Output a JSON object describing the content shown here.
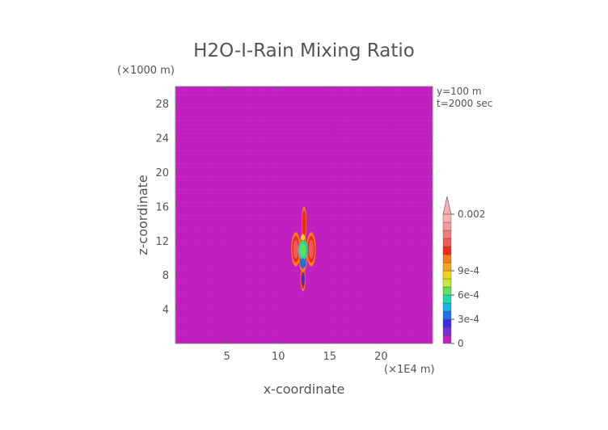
{
  "chart_data": {
    "type": "heatmap",
    "title": "H2O-I-Rain Mixing Ratio",
    "xlabel": "x-coordinate",
    "ylabel": "z-coordinate",
    "x_unit": "(×1E4 m)",
    "y_unit": "(×1000 m)",
    "annotations": [
      "y=100 m",
      "t=2000 sec"
    ],
    "x_ticks": [
      5,
      10,
      15,
      20
    ],
    "y_ticks": [
      4,
      8,
      12,
      16,
      20,
      24,
      28
    ],
    "xlim": [
      0,
      25
    ],
    "ylim": [
      0,
      30
    ],
    "grid": false,
    "background_value": 0,
    "colorbar": {
      "tick_labels": [
        "0.002",
        "9e-4",
        "6e-4",
        "3e-4",
        "0"
      ],
      "tick_values": [
        0.002,
        0.0009,
        0.0006,
        0.0003,
        0
      ],
      "levels": [
        0,
        0.0001,
        0.0002,
        0.0003,
        0.0004,
        0.0005,
        0.0006,
        0.0007,
        0.0008,
        0.0009,
        0.001,
        0.0012,
        0.0014,
        0.0016,
        0.0018,
        0.002
      ],
      "colors": [
        "#c21fc2",
        "#7a2bd6",
        "#3a2fe0",
        "#1f6fe8",
        "#18b4e8",
        "#22d6b0",
        "#5ee05a",
        "#c8e83a",
        "#f0d21a",
        "#f5a81a",
        "#f27d1a",
        "#ee2a1a",
        "#f25a5a",
        "#f47a7a",
        "#f59a9a",
        "#f8b0b0"
      ],
      "extends_max": true
    },
    "features": [
      {
        "label": "rain core",
        "x": 12.4,
        "z": 10.5,
        "value": 0.0006
      },
      {
        "label": "upper plume",
        "x": 12.5,
        "z": 14.0,
        "value": 0.0012
      },
      {
        "label": "left lobe",
        "x": 11.7,
        "z": 11.0,
        "value": 0.0015
      },
      {
        "label": "right lobe",
        "x": 13.2,
        "z": 11.0,
        "value": 0.0015
      },
      {
        "label": "lower tail",
        "x": 12.4,
        "z": 7.5,
        "value": 0.0003
      }
    ]
  }
}
